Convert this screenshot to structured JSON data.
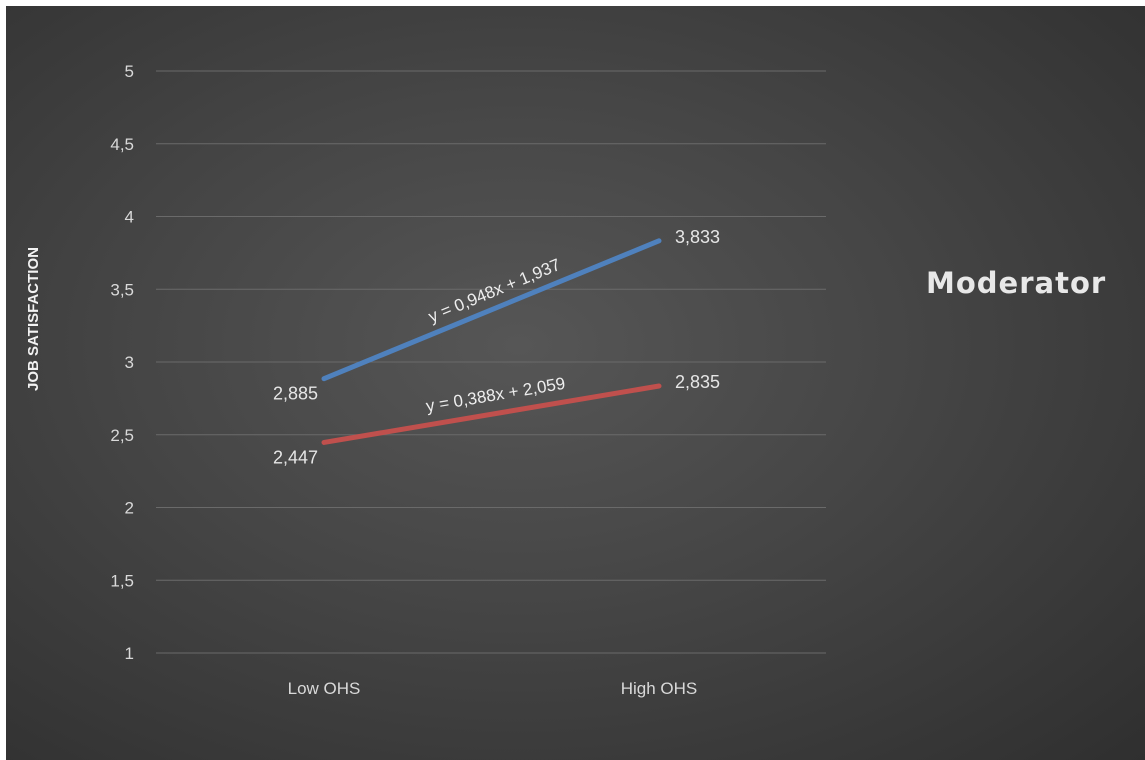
{
  "chart_data": {
    "type": "line",
    "categories": [
      "Low OHS",
      "High OHS"
    ],
    "series": [
      {
        "values": [
          2.885,
          3.833
        ],
        "labels": [
          "2,885",
          "3,833"
        ],
        "color": "#4f81bd",
        "trendline": "y = 0,948x + 1,937"
      },
      {
        "values": [
          2.447,
          2.835
        ],
        "labels": [
          "2,447",
          "2,835"
        ],
        "color": "#c0504d",
        "trendline": "y = 0,388x + 2,059"
      }
    ],
    "ylabel": "JOB SATISFACTION",
    "xlabel": "",
    "ylim": [
      1,
      5
    ],
    "yticks": [
      1,
      1.5,
      2,
      2.5,
      3,
      3.5,
      4,
      4.5,
      5
    ],
    "ytick_labels": [
      "1",
      "1,5",
      "2",
      "2,5",
      "3",
      "3,5",
      "4",
      "4,5",
      "5"
    ],
    "grid": true,
    "legend_title": "Moderator",
    "legend_position": "right"
  }
}
